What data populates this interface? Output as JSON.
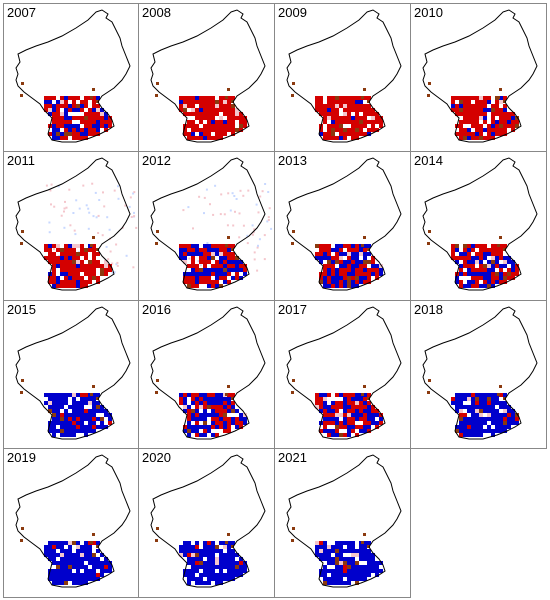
{
  "figure": {
    "panels": [
      {
        "year": "2007",
        "dominant": "red",
        "blue_share": 0.35
      },
      {
        "year": "2008",
        "dominant": "red",
        "blue_share": 0.05
      },
      {
        "year": "2009",
        "dominant": "red",
        "blue_share": 0.08
      },
      {
        "year": "2010",
        "dominant": "red",
        "blue_share": 0.2
      },
      {
        "year": "2011",
        "dominant": "red",
        "blue_share": 0.15,
        "cloud_halo": true
      },
      {
        "year": "2012",
        "dominant": "mixed",
        "blue_share": 0.45,
        "cloud_halo": true
      },
      {
        "year": "2013",
        "dominant": "mixed",
        "blue_share": 0.5
      },
      {
        "year": "2014",
        "dominant": "mixed",
        "blue_share": 0.4
      },
      {
        "year": "2015",
        "dominant": "blue",
        "blue_share": 0.9
      },
      {
        "year": "2016",
        "dominant": "mixed",
        "blue_share": 0.6
      },
      {
        "year": "2017",
        "dominant": "mixed",
        "blue_share": 0.5
      },
      {
        "year": "2018",
        "dominant": "blue",
        "blue_share": 0.92
      },
      {
        "year": "2019",
        "dominant": "blue",
        "blue_share": 0.97
      },
      {
        "year": "2020",
        "dominant": "blue",
        "blue_share": 0.97
      },
      {
        "year": "2021",
        "dominant": "blue",
        "blue_share": 0.95
      }
    ],
    "colors": {
      "red": "#d40000",
      "blue": "#0000cc",
      "brown": "#8b3a0f",
      "pink": "#f4c6cc",
      "outline": "#000000",
      "border": "#888888"
    }
  }
}
